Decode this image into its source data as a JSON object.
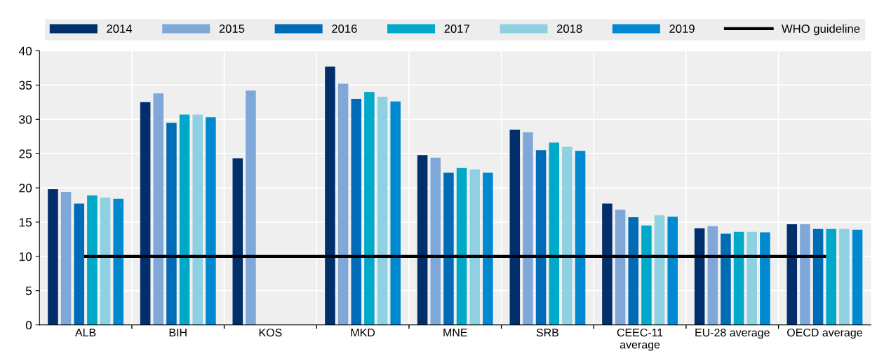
{
  "chart_data": {
    "type": "bar",
    "categories": [
      "ALB",
      "BIH",
      "KOS",
      "MKD",
      "MNE",
      "SRB",
      "CEEC-11\naverage",
      "EU-28 average",
      "OECD average"
    ],
    "series": [
      {
        "name": "2014",
        "color": "#002f6c",
        "values": [
          19.8,
          32.5,
          24.3,
          37.7,
          24.8,
          28.5,
          17.7,
          14.1,
          14.7
        ]
      },
      {
        "name": "2015",
        "color": "#7fa8d9",
        "values": [
          19.4,
          33.8,
          34.2,
          35.2,
          24.4,
          28.1,
          16.8,
          14.4,
          14.7
        ]
      },
      {
        "name": "2016",
        "color": "#006bb6",
        "values": [
          17.7,
          29.5,
          null,
          33.0,
          22.2,
          25.5,
          15.7,
          13.3,
          14.0
        ]
      },
      {
        "name": "2017",
        "color": "#00a9c9",
        "values": [
          18.9,
          30.7,
          null,
          34.0,
          22.9,
          26.6,
          14.5,
          13.6,
          14.0
        ]
      },
      {
        "name": "2018",
        "color": "#8dd1e3",
        "values": [
          18.6,
          30.7,
          null,
          33.3,
          22.7,
          26.0,
          16.0,
          13.6,
          14.0
        ]
      },
      {
        "name": "2019",
        "color": "#0089d0",
        "values": [
          18.4,
          30.3,
          null,
          32.6,
          22.2,
          25.4,
          15.8,
          13.5,
          13.9
        ]
      },
      {
        "name": "WHO guideline",
        "type": "line",
        "color": "#000000",
        "values": [
          10,
          10,
          10,
          10,
          10,
          10,
          10,
          10,
          10
        ]
      }
    ],
    "ylim": [
      0,
      40
    ],
    "yticks": [
      0,
      5,
      10,
      15,
      20,
      25,
      30,
      35,
      40
    ],
    "grid": true,
    "legend": "top",
    "marker": "none",
    "line_style": "solid"
  }
}
